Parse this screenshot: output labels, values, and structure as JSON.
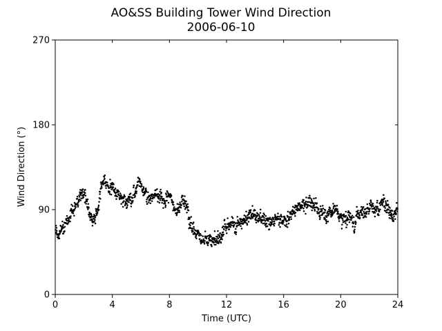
{
  "chart_data": {
    "type": "scatter",
    "title": "AO&SS Building Tower Wind Direction",
    "subtitle": "2006-06-10",
    "xlabel": "Time (UTC)",
    "ylabel": "Wind Direction (°)",
    "xlim": [
      0,
      24
    ],
    "ylim": [
      0,
      270
    ],
    "xticks": [
      0,
      4,
      8,
      12,
      16,
      20,
      24
    ],
    "xtick_labels": [
      "0",
      "4",
      "8",
      "12",
      "16",
      "20",
      "24"
    ],
    "yticks": [
      0,
      90,
      180,
      270
    ],
    "ytick_labels": [
      "0",
      "90",
      "180",
      "270"
    ],
    "grid": false,
    "marker_color": "#000000",
    "trend": [
      [
        0.0,
        70
      ],
      [
        0.3,
        67
      ],
      [
        0.6,
        70
      ],
      [
        0.9,
        82
      ],
      [
        1.2,
        88
      ],
      [
        1.5,
        97
      ],
      [
        1.8,
        110
      ],
      [
        2.1,
        106
      ],
      [
        2.4,
        84
      ],
      [
        2.7,
        79
      ],
      [
        3.0,
        88
      ],
      [
        3.2,
        113
      ],
      [
        3.5,
        118
      ],
      [
        3.8,
        112
      ],
      [
        4.1,
        112
      ],
      [
        4.4,
        108
      ],
      [
        4.7,
        102
      ],
      [
        5.0,
        98
      ],
      [
        5.3,
        104
      ],
      [
        5.6,
        102
      ],
      [
        5.9,
        122
      ],
      [
        6.2,
        112
      ],
      [
        6.5,
        104
      ],
      [
        6.8,
        100
      ],
      [
        7.1,
        108
      ],
      [
        7.4,
        104
      ],
      [
        7.7,
        98
      ],
      [
        8.0,
        108
      ],
      [
        8.3,
        96
      ],
      [
        8.6,
        88
      ],
      [
        8.9,
        100
      ],
      [
        9.2,
        90
      ],
      [
        9.5,
        72
      ],
      [
        9.8,
        64
      ],
      [
        10.1,
        59
      ],
      [
        10.4,
        58
      ],
      [
        10.7,
        58
      ],
      [
        11.0,
        57
      ],
      [
        11.3,
        58
      ],
      [
        11.6,
        62
      ],
      [
        11.9,
        70
      ],
      [
        12.2,
        74
      ],
      [
        12.6,
        76
      ],
      [
        13.0,
        76
      ],
      [
        13.4,
        80
      ],
      [
        13.8,
        84
      ],
      [
        14.2,
        78
      ],
      [
        14.6,
        80
      ],
      [
        15.0,
        76
      ],
      [
        15.4,
        80
      ],
      [
        15.8,
        78
      ],
      [
        16.2,
        80
      ],
      [
        16.6,
        88
      ],
      [
        17.0,
        95
      ],
      [
        17.4,
        96
      ],
      [
        17.8,
        100
      ],
      [
        18.2,
        92
      ],
      [
        18.6,
        84
      ],
      [
        19.0,
        86
      ],
      [
        19.4,
        88
      ],
      [
        19.8,
        88
      ],
      [
        20.2,
        82
      ],
      [
        20.6,
        82
      ],
      [
        21.0,
        80
      ],
      [
        21.4,
        88
      ],
      [
        21.8,
        92
      ],
      [
        22.2,
        93
      ],
      [
        22.6,
        96
      ],
      [
        23.0,
        98
      ],
      [
        23.4,
        90
      ],
      [
        23.7,
        86
      ],
      [
        24.0,
        90
      ]
    ],
    "sample_interval_hours": 0.0167,
    "spread_deg": 7
  }
}
